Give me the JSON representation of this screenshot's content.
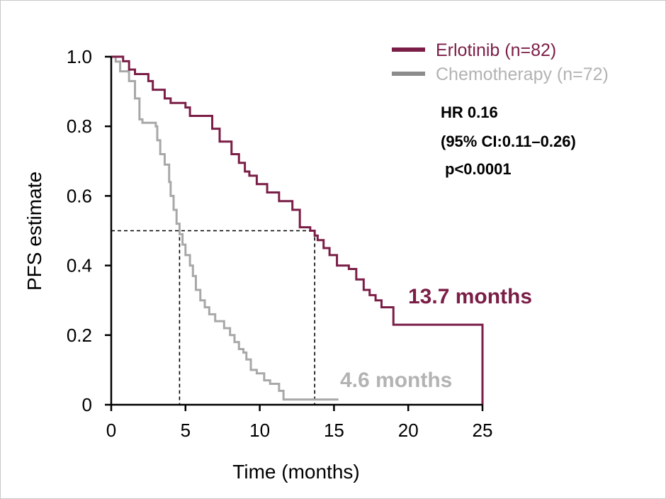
{
  "chart_data": {
    "type": "line",
    "step": true,
    "xlabel": "Time (months)",
    "ylabel": "PFS estimate",
    "xlim": [
      0,
      25
    ],
    "ylim": [
      0,
      1.0
    ],
    "x_ticks": [
      "0",
      "5",
      "10",
      "15",
      "20",
      "25"
    ],
    "y_ticks": [
      "0",
      "0.2",
      "0.4",
      "0.6",
      "0.8",
      "1.0"
    ],
    "x_tick_values": [
      0,
      5,
      10,
      15,
      20,
      25
    ],
    "y_tick_values": [
      0,
      0.2,
      0.4,
      0.6,
      0.8,
      1.0
    ],
    "legend_position": "top-right",
    "series": [
      {
        "name": "Erlotinib (n=82)",
        "color": "#7b1e47",
        "x": [
          0,
          0.8,
          1.2,
          1.6,
          2.5,
          2.8,
          3.6,
          4.0,
          5.0,
          5.3,
          6.8,
          7.3,
          8.1,
          8.6,
          9.0,
          9.3,
          9.8,
          10.5,
          11.3,
          12.2,
          12.7,
          13.4,
          13.7,
          13.9,
          14.3,
          14.7,
          15.2,
          16.0,
          16.5,
          17.0,
          17.4,
          17.8,
          18.2,
          19.0,
          25.0
        ],
        "y": [
          1.0,
          0.987,
          0.963,
          0.95,
          0.93,
          0.905,
          0.88,
          0.867,
          0.854,
          0.83,
          0.793,
          0.756,
          0.72,
          0.695,
          0.67,
          0.658,
          0.634,
          0.61,
          0.585,
          0.56,
          0.51,
          0.5,
          0.486,
          0.473,
          0.45,
          0.43,
          0.4,
          0.39,
          0.36,
          0.33,
          0.315,
          0.3,
          0.28,
          0.23,
          0.0
        ]
      },
      {
        "name": "Chemotherapy (n=72)",
        "color": "#a8a8a8",
        "x": [
          0,
          0.3,
          0.6,
          1.2,
          1.6,
          1.9,
          2.1,
          2.4,
          3.0,
          3.1,
          3.3,
          3.6,
          3.9,
          4.0,
          4.2,
          4.4,
          4.6,
          4.8,
          5.0,
          5.3,
          5.5,
          5.7,
          6.0,
          6.3,
          6.6,
          7.0,
          7.6,
          8.0,
          8.3,
          8.6,
          8.9,
          9.1,
          9.4,
          9.8,
          10.3,
          10.7,
          11.3,
          11.6,
          12.0,
          12.9,
          15.3
        ],
        "y": [
          1.0,
          0.986,
          0.958,
          0.93,
          0.88,
          0.82,
          0.81,
          0.81,
          0.8,
          0.76,
          0.72,
          0.69,
          0.64,
          0.6,
          0.56,
          0.52,
          0.49,
          0.46,
          0.43,
          0.4,
          0.37,
          0.33,
          0.3,
          0.28,
          0.26,
          0.24,
          0.22,
          0.2,
          0.18,
          0.16,
          0.15,
          0.13,
          0.1,
          0.09,
          0.07,
          0.06,
          0.04,
          0.015,
          0.015,
          0.015,
          0.015
        ]
      }
    ],
    "median_lines": [
      {
        "median": 4.6,
        "label": "4.6 months",
        "color": "#b3b3b3"
      },
      {
        "median": 13.7,
        "label": "13.7 months",
        "color": "#7b1e47"
      }
    ],
    "annotations": {
      "hr": "HR 0.16",
      "ci": "(95% CI:0.11–0.26)",
      "p": "p<0.0001"
    }
  }
}
